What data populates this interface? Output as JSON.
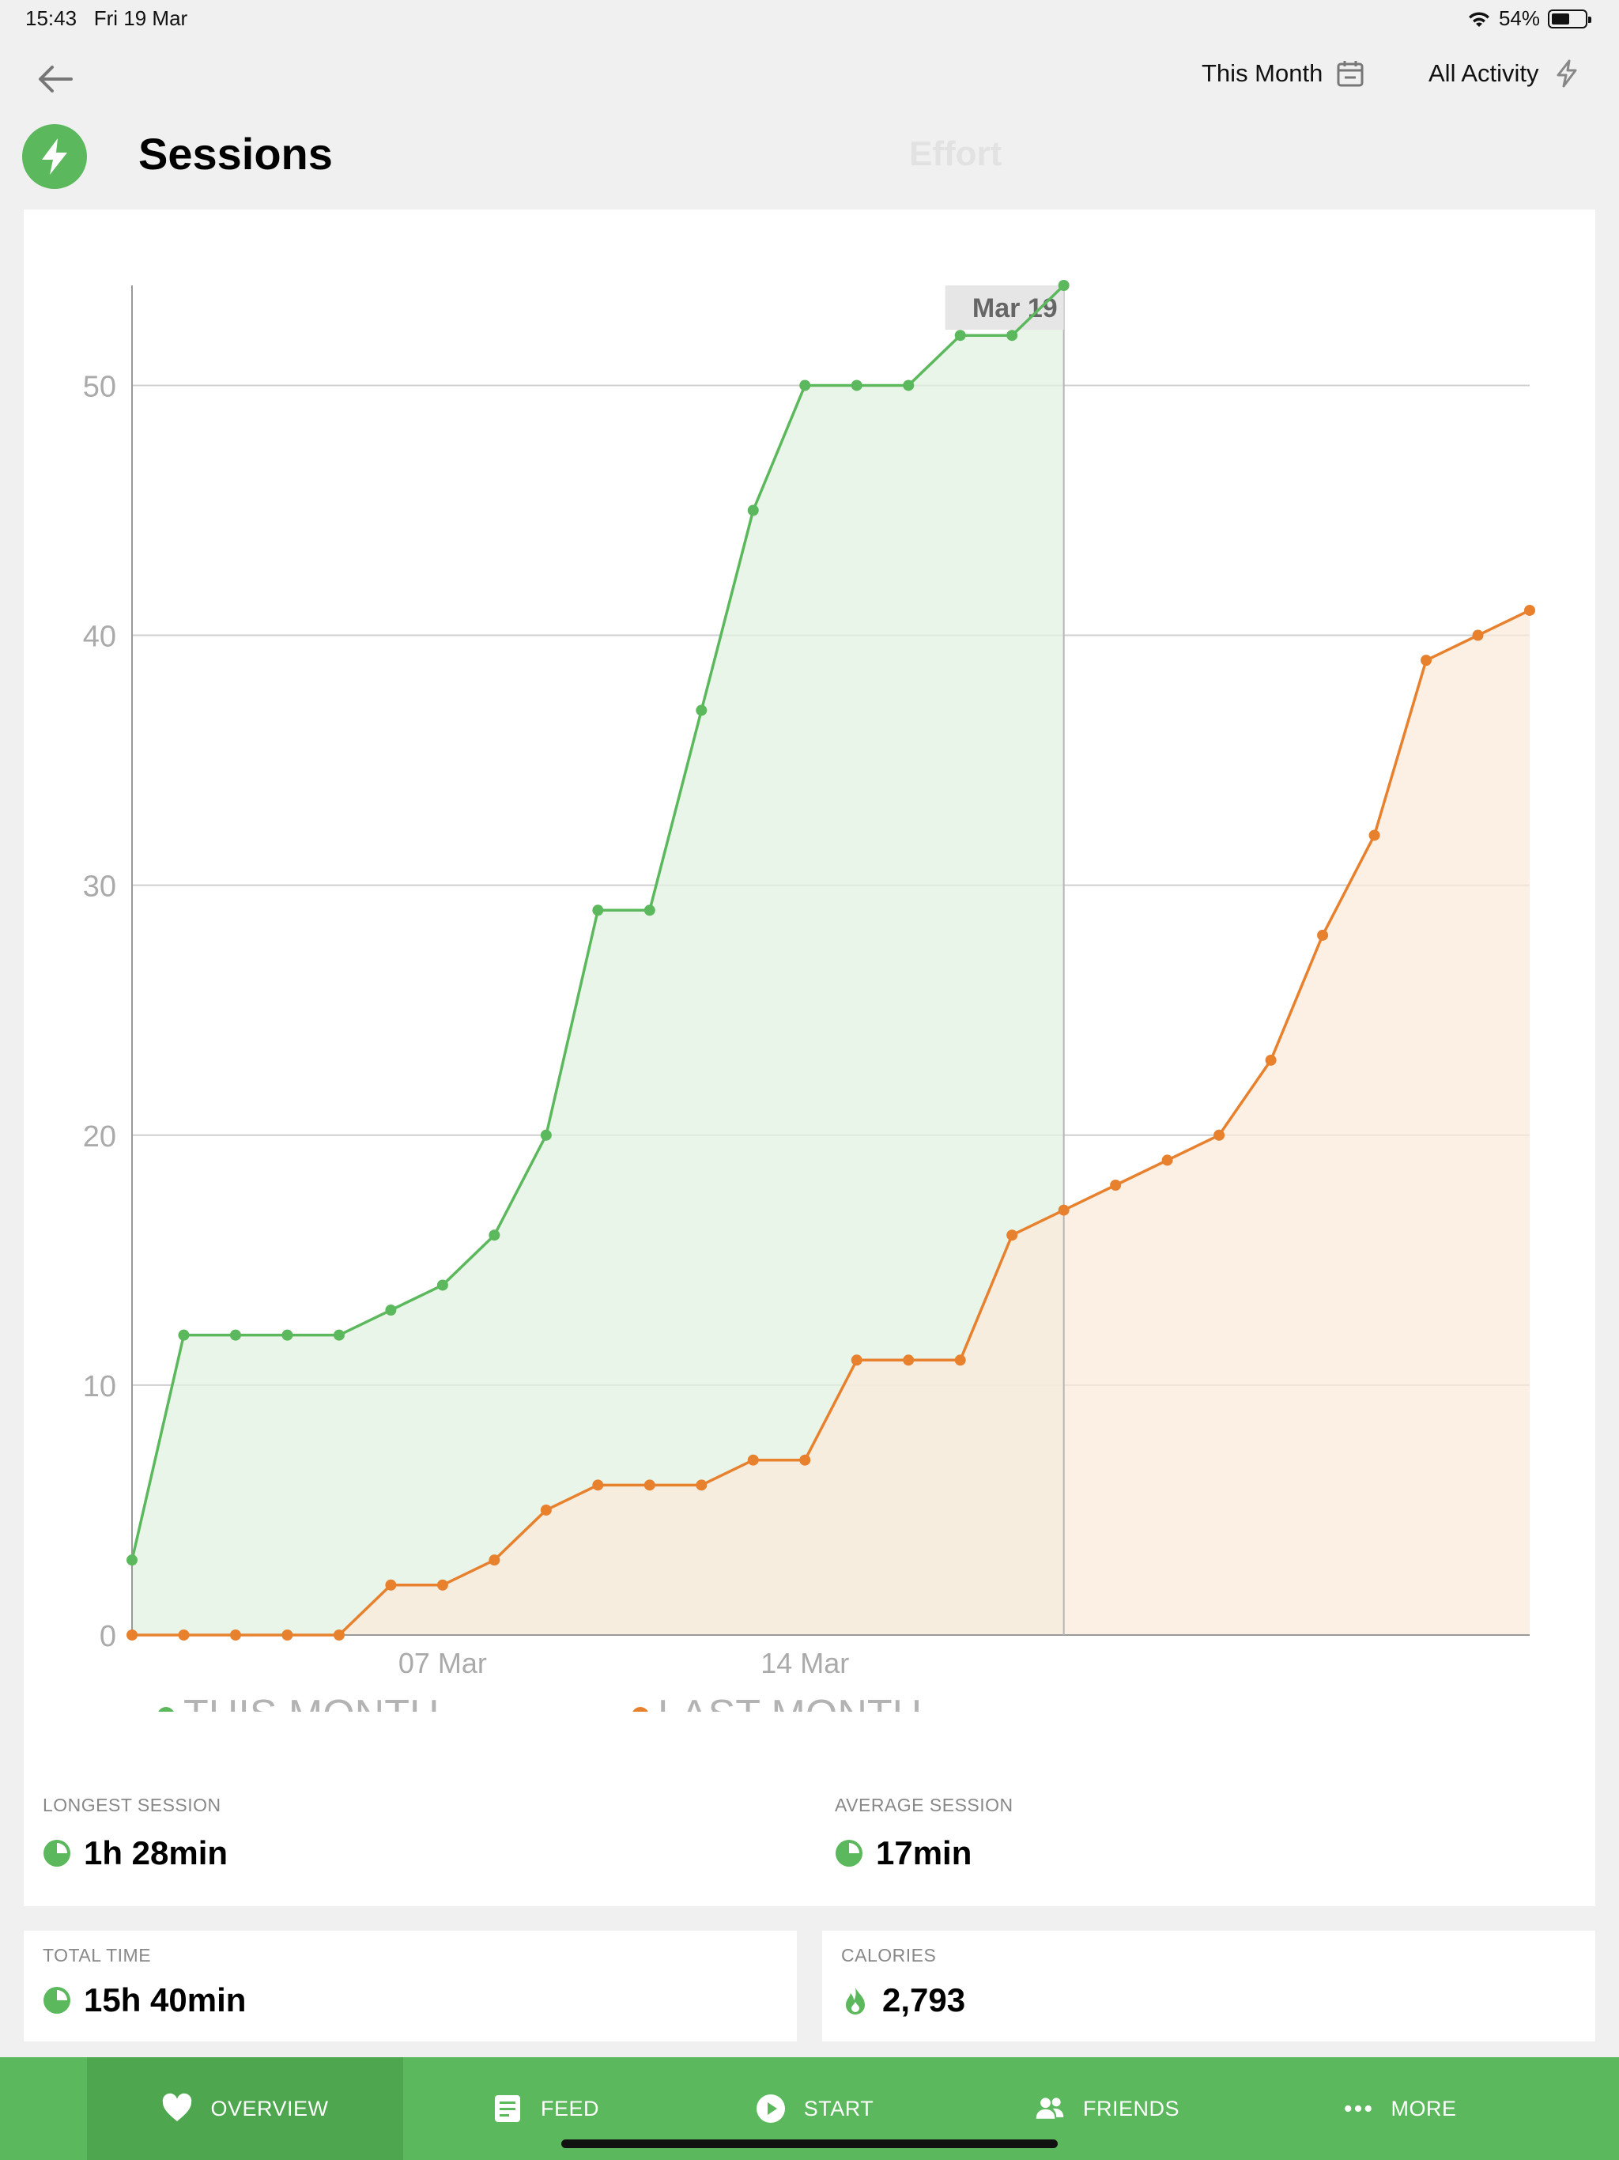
{
  "status_bar": {
    "time": "15:43",
    "date": "Fri 19 Mar",
    "battery_percent": "54%",
    "battery_level": 0.54
  },
  "header": {
    "back_icon": "arrow-left-icon",
    "period_filter": "This Month",
    "activity_filter": "All Activity",
    "title": "Sessions",
    "secondary_tab": "Effort",
    "title_icon": "lightning-icon"
  },
  "chart_data": {
    "type": "area",
    "x_tick_labels": [
      "07 Mar",
      "14 Mar"
    ],
    "x_tick_days": [
      7,
      14
    ],
    "y_ticks": [
      0,
      10,
      20,
      30,
      40,
      50
    ],
    "ylim": [
      0,
      54
    ],
    "xlim": [
      1,
      28
    ],
    "grid": true,
    "legend_position": "bottom-left",
    "highlight": {
      "label": "Mar 19",
      "day": 19
    },
    "series": [
      {
        "name": "THIS MONTH",
        "color": "#5cb85c",
        "fill": "#e3f2e2",
        "x": [
          1,
          2,
          3,
          4,
          5,
          6,
          7,
          8,
          9,
          10,
          11,
          12,
          13,
          14,
          15,
          16,
          17,
          18,
          19
        ],
        "values": [
          3,
          12,
          12,
          12,
          12,
          13,
          14,
          16,
          20,
          29,
          29,
          37,
          45,
          50,
          50,
          50,
          52,
          52,
          54
        ]
      },
      {
        "name": "LAST MONTH",
        "color": "#e8812e",
        "fill": "#fbeadb",
        "x": [
          1,
          2,
          3,
          4,
          5,
          6,
          7,
          8,
          9,
          10,
          11,
          12,
          13,
          14,
          15,
          16,
          17,
          18,
          19,
          20,
          21,
          22,
          23,
          24,
          25,
          26,
          27,
          28
        ],
        "values": [
          0,
          0,
          0,
          0,
          0,
          2,
          2,
          3,
          5,
          6,
          6,
          6,
          7,
          7,
          11,
          11,
          11,
          16,
          17,
          18,
          19,
          20,
          23,
          28,
          32,
          39,
          40,
          41
        ]
      }
    ]
  },
  "stats": {
    "longest_label": "LONGEST SESSION",
    "longest_value": "1h 28min",
    "average_label": "AVERAGE SESSION",
    "average_value": "17min",
    "total_label": "TOTAL TIME",
    "total_value": "15h 40min",
    "calories_label": "CALORIES",
    "calories_value": "2,793"
  },
  "tab_bar": {
    "items": [
      {
        "label": "OVERVIEW",
        "icon": "heart-icon",
        "active": true
      },
      {
        "label": "FEED",
        "icon": "feed-icon",
        "active": false
      },
      {
        "label": "START",
        "icon": "play-icon",
        "active": false
      },
      {
        "label": "FRIENDS",
        "icon": "friends-icon",
        "active": false
      },
      {
        "label": "MORE",
        "icon": "more-icon",
        "active": false
      }
    ]
  }
}
